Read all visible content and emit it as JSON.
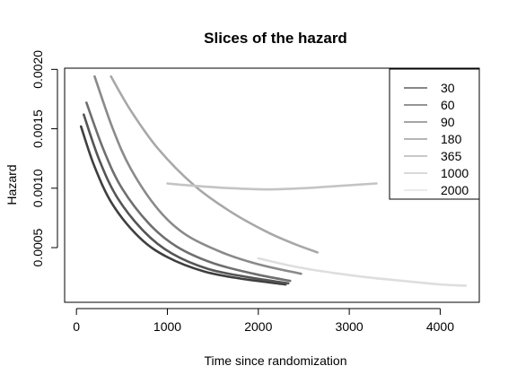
{
  "chart_data": {
    "type": "line",
    "title": "Slices of the hazard",
    "xlabel": "Time since randomization",
    "ylabel": "Hazard",
    "xlim": [
      -130,
      4430
    ],
    "ylim": [
      4e-05,
      0.00201
    ],
    "xticks": [
      0,
      1000,
      2000,
      3000,
      4000
    ],
    "yticks": [
      0.0005,
      0.001,
      0.0015,
      0.002
    ],
    "ytick_labels": [
      "0.0005",
      "0.0010",
      "0.0015",
      "0.0020"
    ],
    "legend_position": "top-right",
    "series": [
      {
        "name": "30",
        "color": "#3f3f3f",
        "points": [
          [
            50,
            0.00152
          ],
          [
            200,
            0.00118
          ],
          [
            400,
            0.00086
          ],
          [
            700,
            0.00058
          ],
          [
            1000,
            0.00042
          ],
          [
            1400,
            0.0003
          ],
          [
            1800,
            0.00024
          ],
          [
            2300,
            0.00019
          ]
        ]
      },
      {
        "name": "60",
        "color": "#555555",
        "points": [
          [
            80,
            0.00162
          ],
          [
            250,
            0.00124
          ],
          [
            450,
            0.00092
          ],
          [
            750,
            0.00063
          ],
          [
            1050,
            0.00045
          ],
          [
            1450,
            0.00032
          ],
          [
            1900,
            0.00025
          ],
          [
            2330,
            0.0002
          ]
        ]
      },
      {
        "name": "90",
        "color": "#6f6f6f",
        "points": [
          [
            110,
            0.00172
          ],
          [
            300,
            0.00132
          ],
          [
            500,
            0.001
          ],
          [
            800,
            0.0007
          ],
          [
            1100,
            0.00051
          ],
          [
            1500,
            0.00037
          ],
          [
            1950,
            0.00028
          ],
          [
            2350,
            0.00022
          ]
        ]
      },
      {
        "name": "180",
        "color": "#8a8a8a",
        "points": [
          [
            200,
            0.00194
          ],
          [
            400,
            0.0015
          ],
          [
            600,
            0.00116
          ],
          [
            900,
            0.00082
          ],
          [
            1200,
            0.00061
          ],
          [
            1600,
            0.00046
          ],
          [
            2000,
            0.00036
          ],
          [
            2470,
            0.00028
          ]
        ]
      },
      {
        "name": "365",
        "color": "#a8a8a8",
        "points": [
          [
            380,
            0.00194
          ],
          [
            600,
            0.00165
          ],
          [
            900,
            0.00133
          ],
          [
            1300,
            0.00102
          ],
          [
            1700,
            0.0008
          ],
          [
            2100,
            0.00063
          ],
          [
            2400,
            0.00053
          ],
          [
            2650,
            0.00046
          ]
        ]
      },
      {
        "name": "1000",
        "color": "#c4c4c4",
        "points": [
          [
            1000,
            0.00104
          ],
          [
            1300,
            0.00102
          ],
          [
            1700,
            0.001
          ],
          [
            2100,
            0.00099
          ],
          [
            2500,
            0.001
          ],
          [
            2900,
            0.00102
          ],
          [
            3300,
            0.00104
          ]
        ]
      },
      {
        "name": "2000",
        "color": "#dedede",
        "points": [
          [
            2000,
            0.00041
          ],
          [
            2400,
            0.00034
          ],
          [
            2800,
            0.00029
          ],
          [
            3200,
            0.00025
          ],
          [
            3600,
            0.00022
          ],
          [
            4000,
            0.00019
          ],
          [
            4280,
            0.00018
          ]
        ]
      }
    ]
  }
}
